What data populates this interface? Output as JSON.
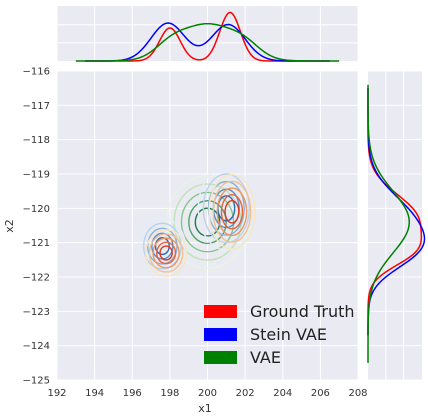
{
  "chart_data": {
    "type": "contour",
    "xlabel": "x1",
    "ylabel": "x2",
    "xlim": [
      192,
      208
    ],
    "ylim": [
      -125,
      -116
    ],
    "xticks": [
      192,
      194,
      196,
      198,
      200,
      202,
      204,
      206,
      208
    ],
    "yticks": [
      -116,
      -117,
      -118,
      -119,
      -120,
      -121,
      -122,
      -123,
      -124,
      -125
    ],
    "grid": true,
    "legend": {
      "placement": "bottom-right"
    },
    "series": [
      {
        "name": "Ground Truth",
        "color": "#ff0000",
        "palette": [
          "#f7e6c4",
          "#f5c08f",
          "#f0955e",
          "#e8613a",
          "#d93a1f"
        ],
        "modes": [
          {
            "cx": 201.3,
            "cy": -120.1,
            "sx": 0.9,
            "sy": 0.8,
            "w": 0.6
          },
          {
            "cx": 197.8,
            "cy": -121.3,
            "sx": 0.8,
            "sy": 0.5,
            "w": 0.4
          }
        ],
        "marginal_x": {
          "peaks": [
            [
              198.0,
              0.68,
              0.55
            ],
            [
              201.2,
              1.0,
              0.55
            ]
          ],
          "min": 193.5,
          "max": 206.5
        },
        "marginal_y": {
          "peaks": [
            [
              -120.3,
              1.0,
              0.7
            ],
            [
              -121.3,
              0.6,
              0.45
            ]
          ],
          "min": -123.7,
          "max": -116.5
        }
      },
      {
        "name": "Stein VAE",
        "color": "#0000ff",
        "palette": [
          "#e2eef9",
          "#b9d3ee",
          "#86b2dc",
          "#5590c9",
          "#2c6ab3"
        ],
        "modes": [
          {
            "cx": 201.0,
            "cy": -120.0,
            "sx": 1.1,
            "sy": 0.9,
            "w": 0.55
          },
          {
            "cx": 197.6,
            "cy": -121.1,
            "sx": 0.9,
            "sy": 0.6,
            "w": 0.45
          }
        ],
        "marginal_x": {
          "peaks": [
            [
              197.9,
              0.78,
              0.9
            ],
            [
              201.1,
              0.75,
              0.9
            ]
          ],
          "min": 193.5,
          "max": 206.5
        },
        "marginal_y": {
          "peaks": [
            [
              -120.4,
              0.9,
              0.8
            ],
            [
              -121.3,
              0.55,
              0.55
            ]
          ],
          "min": -123.7,
          "max": -116.5
        }
      },
      {
        "name": "VAE",
        "color": "#008000",
        "palette": [
          "#e7f5e1",
          "#bfe3b5",
          "#86c688",
          "#4fa466",
          "#1f7a45"
        ],
        "modes": [
          {
            "cx": 200.0,
            "cy": -120.4,
            "sx": 1.6,
            "sy": 1.0,
            "w": 1.0
          }
        ],
        "marginal_x": {
          "peaks": [
            [
              200.0,
              0.75,
              1.5
            ],
            [
              198.0,
              0.2,
              0.8
            ],
            [
              202.0,
              0.2,
              0.8
            ]
          ],
          "min": 193.0,
          "max": 207.0
        },
        "marginal_y": {
          "peaks": [
            [
              -120.4,
              0.85,
              0.9
            ]
          ],
          "min": -124.5,
          "max": -116.4
        }
      }
    ]
  }
}
